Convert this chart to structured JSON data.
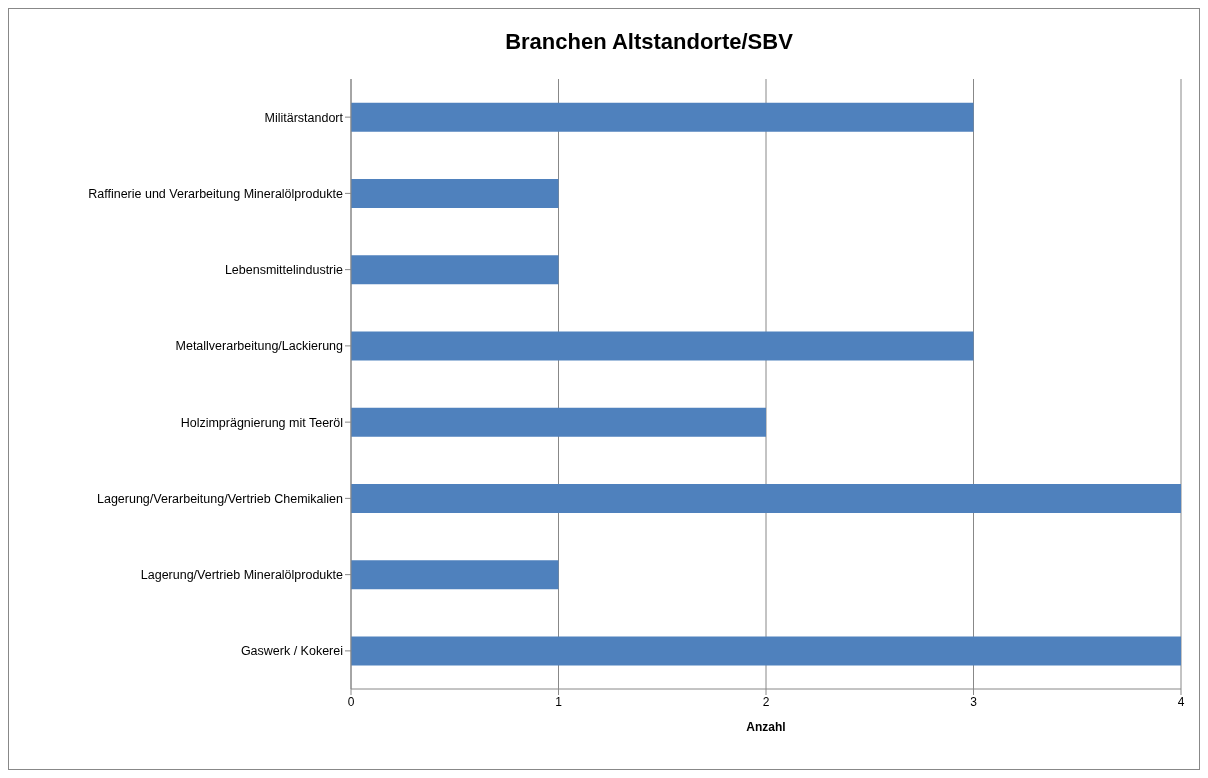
{
  "chart_data": {
    "type": "bar",
    "orientation": "horizontal",
    "title": "Branchen Altstandorte/SBV",
    "xlabel": "Anzahl",
    "categories": [
      "Militärstandort",
      "Raffinerie und Verarbeitung Mineralölprodukte",
      "Lebensmittelindustrie",
      "Metallverarbeitung/Lackierung",
      "Holzimprägnierung mit  Teeröl",
      "Lagerung/Verarbeitung/Vertrieb Chemikalien",
      "Lagerung/Vertrieb Mineralölprodukte",
      "Gaswerk / Kokerei"
    ],
    "values": [
      3,
      1,
      1,
      3,
      2,
      4,
      1,
      4
    ],
    "color": "#4f81bd",
    "xlim": [
      0,
      4
    ],
    "xticks": [
      0,
      1,
      2,
      3,
      4
    ],
    "grid": "x"
  }
}
